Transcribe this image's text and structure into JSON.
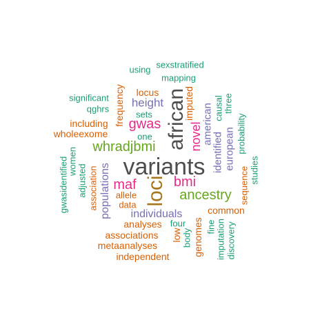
{
  "colors": {
    "dark_gray": "#4d4d4d",
    "teal": "#1b9e77",
    "orange": "#d95f02",
    "purple": "#7570b3",
    "magenta": "#e7298a",
    "green": "#66a61e"
  },
  "words": [
    {
      "text": "variants",
      "color": "#4d4d4d",
      "orientation": "horizontal"
    },
    {
      "text": "african",
      "color": "#4d4d4d",
      "orientation": "vertical"
    },
    {
      "text": "loci",
      "color": "#a6761d",
      "orientation": "vertical"
    },
    {
      "text": "ancestry",
      "color": "#66a61e",
      "orientation": "horizontal"
    },
    {
      "text": "whradjbmi",
      "color": "#66a61e",
      "orientation": "horizontal"
    },
    {
      "text": "bmi",
      "color": "#e7298a",
      "orientation": "horizontal"
    },
    {
      "text": "gwas",
      "color": "#e7298a",
      "orientation": "horizontal"
    },
    {
      "text": "maf",
      "color": "#e7298a",
      "orientation": "horizontal"
    },
    {
      "text": "novel",
      "color": "#e7298a",
      "orientation": "vertical"
    },
    {
      "text": "height",
      "color": "#7570b3",
      "orientation": "horizontal"
    },
    {
      "text": "individuals",
      "color": "#7570b3",
      "orientation": "horizontal"
    },
    {
      "text": "populations",
      "color": "#7570b3",
      "orientation": "vertical"
    },
    {
      "text": "american",
      "color": "#7570b3",
      "orientation": "vertical"
    },
    {
      "text": "identified",
      "color": "#7570b3",
      "orientation": "vertical"
    },
    {
      "text": "european",
      "color": "#7570b3",
      "orientation": "vertical"
    },
    {
      "text": "analyses",
      "color": "#d95f02",
      "orientation": "horizontal"
    },
    {
      "text": "associations",
      "color": "#d95f02",
      "orientation": "horizontal"
    },
    {
      "text": "metaanalyses",
      "color": "#d95f02",
      "orientation": "horizontal"
    },
    {
      "text": "independent",
      "color": "#d95f02",
      "orientation": "horizontal"
    },
    {
      "text": "allele",
      "color": "#d95f02",
      "orientation": "horizontal"
    },
    {
      "text": "data",
      "color": "#d95f02",
      "orientation": "horizontal"
    },
    {
      "text": "common",
      "color": "#d95f02",
      "orientation": "horizontal"
    },
    {
      "text": "including",
      "color": "#d95f02",
      "orientation": "horizontal"
    },
    {
      "text": "wholeexome",
      "color": "#d95f02",
      "orientation": "horizontal"
    },
    {
      "text": "locus",
      "color": "#d95f02",
      "orientation": "horizontal"
    },
    {
      "text": "frequency",
      "color": "#d95f02",
      "orientation": "vertical"
    },
    {
      "text": "imputed",
      "color": "#d95f02",
      "orientation": "vertical"
    },
    {
      "text": "genomes",
      "color": "#d95f02",
      "orientation": "vertical"
    },
    {
      "text": "low",
      "color": "#d95f02",
      "orientation": "vertical"
    },
    {
      "text": "association",
      "color": "#d95f02",
      "orientation": "vertical"
    },
    {
      "text": "sequence",
      "color": "#d95f02",
      "orientation": "vertical"
    },
    {
      "text": "sexstratified",
      "color": "#1b9e77",
      "orientation": "horizontal"
    },
    {
      "text": "using",
      "color": "#1b9e77",
      "orientation": "horizontal"
    },
    {
      "text": "mapping",
      "color": "#1b9e77",
      "orientation": "horizontal"
    },
    {
      "text": "significant",
      "color": "#1b9e77",
      "orientation": "horizontal"
    },
    {
      "text": "qghrs",
      "color": "#1b9e77",
      "orientation": "horizontal"
    },
    {
      "text": "sets",
      "color": "#1b9e77",
      "orientation": "horizontal"
    },
    {
      "text": "one",
      "color": "#1b9e77",
      "orientation": "horizontal"
    },
    {
      "text": "four",
      "color": "#1b9e77",
      "orientation": "horizontal"
    },
    {
      "text": "causal",
      "color": "#1b9e77",
      "orientation": "vertical"
    },
    {
      "text": "three",
      "color": "#1b9e77",
      "orientation": "vertical"
    },
    {
      "text": "probability",
      "color": "#1b9e77",
      "orientation": "vertical"
    },
    {
      "text": "studies",
      "color": "#1b9e77",
      "orientation": "vertical"
    },
    {
      "text": "gwasidentified",
      "color": "#1b9e77",
      "orientation": "vertical"
    },
    {
      "text": "women",
      "color": "#1b9e77",
      "orientation": "vertical"
    },
    {
      "text": "adjusted",
      "color": "#1b9e77",
      "orientation": "vertical"
    },
    {
      "text": "body",
      "color": "#1b9e77",
      "orientation": "vertical"
    },
    {
      "text": "fine",
      "color": "#1b9e77",
      "orientation": "vertical"
    },
    {
      "text": "imputation",
      "color": "#1b9e77",
      "orientation": "vertical"
    },
    {
      "text": "discovery",
      "color": "#1b9e77",
      "orientation": "vertical"
    }
  ]
}
